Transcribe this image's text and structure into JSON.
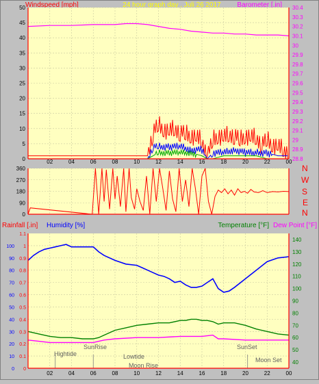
{
  "header": {
    "left": "Windspeed [mph]",
    "center": "24 hour graph day . Juli 26 2017",
    "right": "Barometer [.in]"
  },
  "compass": [
    "N",
    "W",
    "S",
    "E",
    "N"
  ],
  "colors": {
    "background": "#c0c0c0",
    "plot_bg": "#ffffc0",
    "axis_red": "#ff0000",
    "barometer": "#ff00ff",
    "humidity": "#0000ff",
    "temperature": "#008000",
    "dewpoint": "#ff00ff",
    "windspeed": "#ff0000",
    "windavg": "#0000ff",
    "windlow": "#00aa00",
    "direction": "#ff0000"
  },
  "chart_data": [
    {
      "type": "line",
      "title": "24 hour graph day . Juli 26 2017",
      "ylabel": "Windspeed [mph]",
      "y2label": "Barometer [.in]",
      "x_ticks": [
        "02",
        "04",
        "06",
        "08",
        "10",
        "12",
        "14",
        "16",
        "18",
        "20",
        "22",
        "00"
      ],
      "ylim": [
        0,
        50
      ],
      "y_ticks": [
        0,
        5,
        10,
        15,
        20,
        25,
        30,
        35,
        40,
        45,
        50
      ],
      "y2lim": [
        28.8,
        30.4
      ],
      "y2_ticks": [
        "28.8",
        "28.9",
        "29",
        "29.1",
        "29.2",
        "29.3",
        "29.4",
        "29.5",
        "29.6",
        "29.7",
        "29.8",
        "29.9",
        "30",
        "30.1",
        "30.2",
        "30.3",
        "30.4"
      ],
      "series": [
        {
          "name": "Barometer",
          "axis": "right",
          "x": [
            0,
            2,
            4,
            6,
            8,
            9,
            10,
            11,
            12,
            13,
            14,
            15,
            16,
            17,
            18,
            19,
            20,
            21,
            22,
            23,
            24
          ],
          "values": [
            30.2,
            30.21,
            30.21,
            30.22,
            30.22,
            30.23,
            30.23,
            30.22,
            30.2,
            30.18,
            30.17,
            30.15,
            30.14,
            30.13,
            30.13,
            30.12,
            30.12,
            30.11,
            30.11,
            30.11,
            30.1
          ]
        },
        {
          "name": "Wind gust",
          "axis": "left",
          "x": [
            0,
            1,
            2,
            3,
            4,
            5,
            6,
            7,
            8,
            9,
            10,
            11,
            11.5,
            12,
            12.5,
            13,
            13.5,
            14,
            14.5,
            15,
            15.5,
            16,
            16.5,
            17,
            17.5,
            18,
            18.5,
            19,
            19.5,
            20,
            20.5,
            21,
            21.5,
            22,
            22.5,
            23,
            23.5,
            24
          ],
          "values": [
            1,
            1,
            1,
            1,
            1,
            1,
            1,
            1,
            1,
            1,
            1,
            1,
            9,
            11,
            10,
            9,
            10,
            9,
            8,
            8,
            7,
            6,
            1,
            6,
            8,
            7,
            8,
            8,
            6,
            8,
            7,
            7,
            5,
            6,
            5,
            4,
            3,
            2
          ]
        },
        {
          "name": "Wind avg",
          "axis": "left",
          "x": [
            0,
            2,
            4,
            6,
            8,
            10,
            11,
            11.5,
            12,
            13,
            14,
            15,
            16,
            16.5,
            17,
            18,
            19,
            20,
            21,
            22,
            23,
            24
          ],
          "values": [
            0,
            0,
            0,
            0,
            0,
            0,
            0,
            4,
            4,
            4,
            4,
            3,
            3,
            0,
            2,
            2,
            3,
            2,
            2,
            2,
            1,
            1
          ]
        },
        {
          "name": "Wind low",
          "axis": "left",
          "x": [
            0,
            11,
            11.5,
            12,
            13,
            14,
            15,
            16,
            16.5,
            17,
            18,
            19,
            20,
            21,
            22,
            23,
            24
          ],
          "values": [
            0,
            0,
            1,
            2,
            2,
            2,
            2,
            1,
            0,
            0,
            1,
            1,
            1,
            1,
            0,
            0,
            0
          ]
        }
      ]
    },
    {
      "type": "scatter",
      "ylabel": "",
      "y_ticks": [
        0,
        90,
        180,
        270,
        360
      ],
      "ylim": [
        0,
        360
      ],
      "series": [
        {
          "name": "Wind direction",
          "x": [
            0,
            0.2,
            5.9,
            6.2,
            6.5,
            6.8,
            7,
            7.2,
            7.5,
            7.8,
            8,
            8.2,
            8.5,
            8.8,
            9,
            9.3,
            9.5,
            9.8,
            10,
            10.3,
            10.6,
            10.9,
            11.2,
            11.5,
            11.8,
            12.1,
            12.4,
            12.7,
            13,
            13.3,
            13.6,
            13.9,
            14.2,
            14.5,
            14.8,
            15.1,
            15.4,
            15.7,
            16,
            16.3,
            16.6,
            16.9,
            17.2,
            17.5,
            17.8,
            18.1,
            18.4,
            18.7,
            19,
            19.3,
            19.6,
            19.9,
            20.2,
            20.5,
            20.8,
            21.2,
            21.6,
            22,
            22.5,
            23,
            23.5,
            24
          ],
          "values": [
            0,
            50,
            0,
            360,
            0,
            360,
            100,
            350,
            40,
            360,
            120,
            300,
            60,
            360,
            20,
            360,
            130,
            40,
            200,
            100,
            30,
            300,
            0,
            360,
            100,
            360,
            200,
            30,
            340,
            120,
            20,
            360,
            100,
            270,
            60,
            360,
            200,
            0,
            300,
            360,
            100,
            0,
            140,
            190,
            170,
            200,
            160,
            190,
            150,
            200,
            170,
            180,
            165,
            195,
            175,
            170,
            185,
            170,
            178,
            175,
            180,
            178
          ]
        }
      ]
    },
    {
      "type": "line",
      "ylabel": "Rainfall [.in]",
      "y2label": "Humidity [%]",
      "y3label": "Temperature [°F]",
      "y4label": "Dew Point [°F]",
      "rain_ticks": [
        "0",
        "0.1",
        "0.2",
        "0.3",
        "0.4",
        "0.5",
        "0.6",
        "0.7",
        "0.8",
        "0.9",
        "1",
        "1.1"
      ],
      "humidity_ticks": [
        0,
        10,
        20,
        30,
        40,
        50,
        60,
        70,
        80,
        90,
        100
      ],
      "temp_ticks": [
        40,
        50,
        60,
        70,
        80,
        90,
        100,
        110,
        120,
        130,
        140
      ],
      "humidity_lim": [
        0,
        110
      ],
      "temp_lim": [
        35,
        145
      ],
      "annotations": [
        "Hightide",
        "SunRise",
        "Lowtide",
        "Moon Rise",
        "SunSet",
        "Moon Set"
      ],
      "series": [
        {
          "name": "Humidity",
          "axis": "humidity",
          "x": [
            0,
            0.5,
            1,
            1.5,
            2,
            2.5,
            3,
            3.5,
            4,
            5,
            6,
            6.5,
            7,
            8,
            9,
            10,
            10.5,
            11,
            11.5,
            12,
            12.5,
            13,
            13.5,
            14,
            14.5,
            15,
            15.5,
            16,
            16.5,
            17,
            17.5,
            18,
            18.5,
            19,
            20,
            21,
            22,
            23,
            24
          ],
          "values": [
            88,
            92,
            95,
            97,
            98,
            99,
            100,
            101,
            99,
            99,
            99,
            95,
            92,
            88,
            85,
            84,
            82,
            80,
            78,
            76,
            75,
            73,
            70,
            71,
            68,
            66,
            66,
            67,
            70,
            73,
            65,
            62,
            63,
            66,
            73,
            80,
            87,
            90,
            91
          ]
        },
        {
          "name": "Temperature",
          "axis": "temp",
          "x": [
            0,
            1,
            2,
            3,
            4,
            5,
            6,
            6.5,
            7,
            8,
            9,
            10,
            11,
            12,
            13,
            14,
            14.5,
            15,
            15.5,
            16,
            16.5,
            17,
            17.5,
            18,
            19,
            20,
            21,
            22,
            23,
            24
          ],
          "values": [
            65,
            63,
            61,
            60,
            60,
            59,
            59,
            60,
            62,
            66,
            68,
            70,
            71,
            72,
            72,
            74,
            74,
            75,
            75,
            74,
            74,
            73,
            71,
            72,
            72,
            70,
            67,
            65,
            63,
            62
          ]
        },
        {
          "name": "Dew Point",
          "axis": "temp",
          "x": [
            0,
            1,
            2,
            4,
            6,
            6.5,
            7,
            8,
            10,
            12,
            14,
            16,
            17,
            17.5,
            18,
            20,
            22,
            24
          ],
          "values": [
            58,
            57,
            56,
            56,
            56,
            57,
            58,
            59,
            60,
            60,
            61,
            61,
            62,
            59,
            59,
            58,
            58,
            58
          ]
        }
      ]
    }
  ]
}
